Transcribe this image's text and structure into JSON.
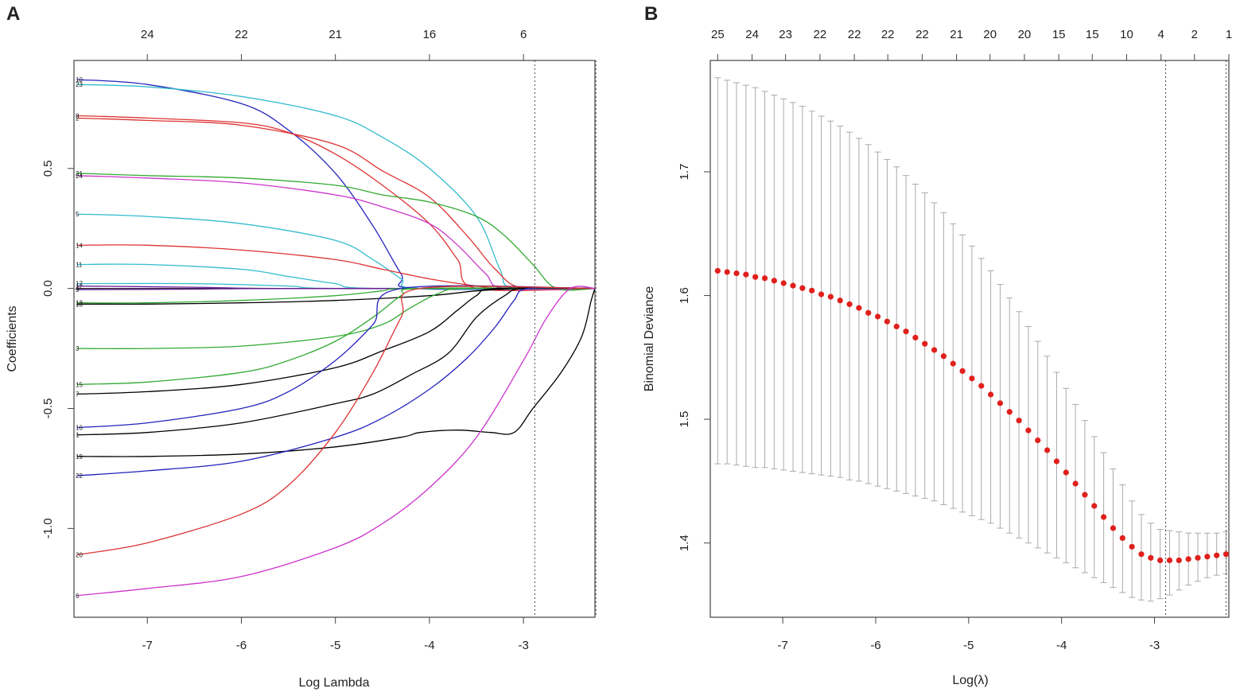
{
  "chart_data": [
    {
      "panel": "A",
      "type": "line",
      "title": "",
      "xlabel": "Log Lambda",
      "ylabel": "Coefficients",
      "xlim": [
        -7.78,
        -2.24
      ],
      "ylim": [
        -1.37,
        0.95
      ],
      "x_ticks": [
        -7,
        -6,
        -5,
        -4,
        -3
      ],
      "y_ticks": [
        0.5,
        0.0,
        -0.5,
        -1.0
      ],
      "y_tick_labels": [
        "0.5",
        "0.0",
        "-0.5",
        "-1.0"
      ],
      "top_axis": {
        "x": [
          -7,
          -6,
          -5,
          -4,
          -3
        ],
        "labels": [
          "24",
          "22",
          "21",
          "16",
          "6"
        ]
      },
      "vlines": [
        -2.88,
        -2.23
      ],
      "color_cycle": [
        "#000000",
        "#dd3333",
        "#33aa33",
        "#2222bb",
        "#33bbcc",
        "#cc33cc"
      ],
      "series": [
        {
          "name": "10",
          "color": "#2222bb",
          "points": [
            [
              -7.75,
              0.87
            ],
            [
              -7,
              0.85
            ],
            [
              -6,
              0.77
            ],
            [
              -5.5,
              0.66
            ],
            [
              -5,
              0.48
            ],
            [
              -4.6,
              0.26
            ],
            [
              -4.3,
              0.06
            ],
            [
              -4.15,
              0
            ]
          ]
        },
        {
          "name": "23",
          "color": "#33bbcc",
          "points": [
            [
              -7.75,
              0.85
            ],
            [
              -7,
              0.84
            ],
            [
              -6,
              0.8
            ],
            [
              -5,
              0.72
            ],
            [
              -4.5,
              0.63
            ],
            [
              -4,
              0.5
            ],
            [
              -3.5,
              0.3
            ],
            [
              -3.25,
              0.08
            ],
            [
              -3.1,
              0
            ]
          ]
        },
        {
          "name": "8",
          "color": "#dd3333",
          "points": [
            [
              -7.75,
              0.72
            ],
            [
              -7,
              0.71
            ],
            [
              -6,
              0.69
            ],
            [
              -5.5,
              0.65
            ],
            [
              -5,
              0.56
            ],
            [
              -4.5,
              0.43
            ],
            [
              -4,
              0.27
            ],
            [
              -3.7,
              0.12
            ],
            [
              -3.5,
              0
            ]
          ]
        },
        {
          "name": "2",
          "color": "#dd3333",
          "points": [
            [
              -7.75,
              0.71
            ],
            [
              -7,
              0.7
            ],
            [
              -6,
              0.68
            ],
            [
              -5,
              0.6
            ],
            [
              -4.5,
              0.49
            ],
            [
              -4,
              0.38
            ],
            [
              -3.6,
              0.22
            ],
            [
              -3.3,
              0.08
            ],
            [
              -3.0,
              0
            ]
          ]
        },
        {
          "name": "21",
          "color": "#33aa33",
          "points": [
            [
              -7.75,
              0.48
            ],
            [
              -7,
              0.47
            ],
            [
              -6,
              0.46
            ],
            [
              -5,
              0.43
            ],
            [
              -4.5,
              0.39
            ],
            [
              -4.0,
              0.36
            ],
            [
              -3.5,
              0.3
            ],
            [
              -3.2,
              0.22
            ],
            [
              -2.9,
              0.1
            ],
            [
              -2.65,
              0
            ]
          ]
        },
        {
          "name": "24",
          "color": "#cc33cc",
          "points": [
            [
              -7.75,
              0.47
            ],
            [
              -7,
              0.46
            ],
            [
              -6,
              0.44
            ],
            [
              -5,
              0.39
            ],
            [
              -4.5,
              0.34
            ],
            [
              -4,
              0.27
            ],
            [
              -3.7,
              0.18
            ],
            [
              -3.4,
              0.06
            ],
            [
              -3.2,
              0
            ]
          ]
        },
        {
          "name": "5",
          "color": "#33bbcc",
          "points": [
            [
              -7.75,
              0.31
            ],
            [
              -7,
              0.3
            ],
            [
              -6,
              0.27
            ],
            [
              -5,
              0.2
            ],
            [
              -4.6,
              0.12
            ],
            [
              -4.3,
              0.04
            ],
            [
              -4.1,
              0
            ]
          ]
        },
        {
          "name": "14",
          "color": "#dd3333",
          "points": [
            [
              -7.75,
              0.18
            ],
            [
              -7,
              0.18
            ],
            [
              -6,
              0.16
            ],
            [
              -5,
              0.12
            ],
            [
              -4.5,
              0.08
            ],
            [
              -4,
              0.04
            ],
            [
              -3.5,
              0.01
            ],
            [
              -3.2,
              0
            ]
          ]
        },
        {
          "name": "11",
          "color": "#33bbcc",
          "points": [
            [
              -7.75,
              0.1
            ],
            [
              -7,
              0.1
            ],
            [
              -6,
              0.08
            ],
            [
              -5.5,
              0.05
            ],
            [
              -5,
              0.02
            ],
            [
              -4.6,
              0
            ]
          ]
        },
        {
          "name": "17",
          "color": "#33bbcc",
          "points": [
            [
              -7.75,
              0.02
            ],
            [
              -6.5,
              0.02
            ],
            [
              -5.5,
              0.01
            ],
            [
              -5,
              0
            ]
          ]
        },
        {
          "name": "12",
          "color": "#6a1b9a",
          "points": [
            [
              -7.75,
              0.01
            ],
            [
              -6.5,
              0.005
            ],
            [
              -5.5,
              0
            ]
          ]
        },
        {
          "name": "4",
          "color": "#333333",
          "points": [
            [
              -7.75,
              0.0
            ],
            [
              -6.5,
              0.0
            ],
            [
              -5.5,
              0
            ]
          ]
        },
        {
          "name": "9",
          "color": "#6a1b9a",
          "points": [
            [
              -7.75,
              -0.005
            ],
            [
              -6.5,
              -0.003
            ],
            [
              -5.5,
              0
            ]
          ]
        },
        {
          "name": "13",
          "color": "#33aa33",
          "points": [
            [
              -7.75,
              -0.06
            ],
            [
              -7,
              -0.06
            ],
            [
              -6,
              -0.05
            ],
            [
              -5,
              -0.03
            ],
            [
              -4.5,
              -0.01
            ],
            [
              -4.2,
              0
            ]
          ]
        },
        {
          "name": "18",
          "color": "#000000",
          "points": [
            [
              -7.75,
              -0.065
            ],
            [
              -7,
              -0.065
            ],
            [
              -6,
              -0.06
            ],
            [
              -5,
              -0.05
            ],
            [
              -4,
              -0.03
            ],
            [
              -3.5,
              -0.01
            ],
            [
              -3,
              0
            ]
          ]
        },
        {
          "name": "3",
          "color": "#33aa33",
          "points": [
            [
              -7.75,
              -0.25
            ],
            [
              -7,
              -0.25
            ],
            [
              -6,
              -0.24
            ],
            [
              -5,
              -0.2
            ],
            [
              -4.5,
              -0.15
            ],
            [
              -4.2,
              -0.08
            ],
            [
              -3.9,
              -0.02
            ],
            [
              -3.6,
              0
            ]
          ]
        },
        {
          "name": "15",
          "color": "#33aa33",
          "points": [
            [
              -7.75,
              -0.4
            ],
            [
              -7,
              -0.39
            ],
            [
              -6,
              -0.35
            ],
            [
              -5.5,
              -0.3
            ],
            [
              -5,
              -0.22
            ],
            [
              -4.6,
              -0.12
            ],
            [
              -4.3,
              -0.03
            ],
            [
              -4.1,
              0
            ]
          ]
        },
        {
          "name": "7",
          "color": "#000000",
          "points": [
            [
              -7.75,
              -0.44
            ],
            [
              -7,
              -0.43
            ],
            [
              -6,
              -0.4
            ],
            [
              -5,
              -0.33
            ],
            [
              -4.5,
              -0.26
            ],
            [
              -4,
              -0.18
            ],
            [
              -3.7,
              -0.09
            ],
            [
              -3.5,
              -0.03
            ],
            [
              -3.3,
              0
            ]
          ]
        },
        {
          "name": "16",
          "color": "#2222bb",
          "points": [
            [
              -7.75,
              -0.58
            ],
            [
              -7,
              -0.56
            ],
            [
              -6,
              -0.5
            ],
            [
              -5.5,
              -0.43
            ],
            [
              -5,
              -0.3
            ],
            [
              -4.6,
              -0.15
            ],
            [
              -4.3,
              0
            ]
          ]
        },
        {
          "name": "1",
          "color": "#000000",
          "points": [
            [
              -7.75,
              -0.61
            ],
            [
              -7,
              -0.6
            ],
            [
              -6,
              -0.56
            ],
            [
              -5,
              -0.48
            ],
            [
              -4.6,
              -0.44
            ],
            [
              -4.2,
              -0.36
            ],
            [
              -3.8,
              -0.27
            ],
            [
              -3.5,
              -0.12
            ],
            [
              -3.2,
              -0.03
            ],
            [
              -3.0,
              0
            ]
          ]
        },
        {
          "name": "19",
          "color": "#000000",
          "points": [
            [
              -7.75,
              -0.7
            ],
            [
              -7,
              -0.7
            ],
            [
              -6,
              -0.69
            ],
            [
              -5,
              -0.66
            ],
            [
              -4.3,
              -0.62
            ],
            [
              -4.1,
              -0.6
            ],
            [
              -3.7,
              -0.59
            ],
            [
              -3.35,
              -0.6
            ],
            [
              -3.1,
              -0.6
            ],
            [
              -2.9,
              -0.5
            ],
            [
              -2.6,
              -0.35
            ],
            [
              -2.38,
              -0.2
            ],
            [
              -2.28,
              -0.05
            ],
            [
              -2.24,
              0
            ]
          ]
        },
        {
          "name": "22",
          "color": "#2222bb",
          "points": [
            [
              -7.75,
              -0.78
            ],
            [
              -7,
              -0.76
            ],
            [
              -6,
              -0.72
            ],
            [
              -5,
              -0.62
            ],
            [
              -4.5,
              -0.54
            ],
            [
              -4,
              -0.42
            ],
            [
              -3.6,
              -0.29
            ],
            [
              -3.3,
              -0.16
            ],
            [
              -3.1,
              -0.05
            ],
            [
              -2.95,
              0
            ]
          ]
        },
        {
          "name": "20",
          "color": "#dd3333",
          "points": [
            [
              -7.75,
              -1.11
            ],
            [
              -7,
              -1.06
            ],
            [
              -6,
              -0.94
            ],
            [
              -5.5,
              -0.82
            ],
            [
              -5,
              -0.6
            ],
            [
              -4.6,
              -0.35
            ],
            [
              -4.3,
              -0.12
            ],
            [
              -4.1,
              0
            ]
          ]
        },
        {
          "name": "6",
          "color": "#cc33cc",
          "points": [
            [
              -7.75,
              -1.28
            ],
            [
              -7,
              -1.25
            ],
            [
              -6,
              -1.2
            ],
            [
              -5,
              -1.08
            ],
            [
              -4.5,
              -0.98
            ],
            [
              -4,
              -0.83
            ],
            [
              -3.5,
              -0.62
            ],
            [
              -3,
              -0.3
            ],
            [
              -2.75,
              -0.12
            ],
            [
              -2.5,
              0
            ]
          ]
        }
      ]
    },
    {
      "panel": "B",
      "type": "scatter",
      "title": "",
      "xlabel": "Log(λ)",
      "ylabel": "Binomial Deviance",
      "xlim": [
        -7.78,
        -2.2
      ],
      "ylim": [
        1.34,
        1.79
      ],
      "x_ticks": [
        -7,
        -6,
        -5,
        -4,
        -3
      ],
      "y_ticks": [
        1.4,
        1.5,
        1.6,
        1.7
      ],
      "y_tick_labels": [
        "1.4",
        "1.5",
        "1.6",
        "1.7"
      ],
      "top_axis": {
        "x": [
          -7.7,
          -7.33,
          -6.97,
          -6.6,
          -6.23,
          -5.87,
          -5.5,
          -5.13,
          -4.77,
          -4.4,
          -4.03,
          -3.67,
          -3.3,
          -2.93,
          -2.57,
          -2.2
        ],
        "labels": [
          "25",
          "24",
          "23",
          "22",
          "22",
          "22",
          "22",
          "21",
          "20",
          "20",
          "15",
          "15",
          "10",
          "4",
          "2",
          "1"
        ]
      },
      "vlines": [
        -2.88,
        -2.23
      ],
      "lambda_start": -7.7,
      "lambda_end": -2.23,
      "deviance": [
        1.62,
        1.619,
        1.618,
        1.617,
        1.615,
        1.614,
        1.612,
        1.61,
        1.608,
        1.606,
        1.604,
        1.601,
        1.599,
        1.596,
        1.593,
        1.59,
        1.586,
        1.583,
        1.579,
        1.575,
        1.571,
        1.566,
        1.561,
        1.556,
        1.551,
        1.545,
        1.539,
        1.533,
        1.527,
        1.52,
        1.513,
        1.506,
        1.499,
        1.491,
        1.483,
        1.475,
        1.466,
        1.457,
        1.448,
        1.439,
        1.43,
        1.421,
        1.412,
        1.404,
        1.397,
        1.391,
        1.388,
        1.386,
        1.386,
        1.386,
        1.387,
        1.388,
        1.389,
        1.39,
        1.391
      ],
      "upper": [
        1.776,
        1.774,
        1.772,
        1.77,
        1.768,
        1.765,
        1.762,
        1.759,
        1.756,
        1.753,
        1.749,
        1.745,
        1.741,
        1.737,
        1.732,
        1.727,
        1.722,
        1.716,
        1.71,
        1.704,
        1.697,
        1.69,
        1.683,
        1.675,
        1.667,
        1.658,
        1.649,
        1.64,
        1.63,
        1.62,
        1.609,
        1.598,
        1.587,
        1.575,
        1.563,
        1.551,
        1.538,
        1.525,
        1.512,
        1.499,
        1.486,
        1.473,
        1.46,
        1.447,
        1.434,
        1.423,
        1.416,
        1.411,
        1.41,
        1.409,
        1.408,
        1.408,
        1.408,
        1.408,
        1.409
      ],
      "lower": [
        1.464,
        1.464,
        1.463,
        1.462,
        1.461,
        1.461,
        1.46,
        1.459,
        1.458,
        1.457,
        1.456,
        1.455,
        1.454,
        1.453,
        1.451,
        1.45,
        1.448,
        1.446,
        1.444,
        1.442,
        1.44,
        1.438,
        1.436,
        1.434,
        1.431,
        1.428,
        1.425,
        1.422,
        1.419,
        1.416,
        1.412,
        1.408,
        1.404,
        1.4,
        1.396,
        1.392,
        1.388,
        1.384,
        1.38,
        1.376,
        1.372,
        1.368,
        1.364,
        1.36,
        1.356,
        1.354,
        1.353,
        1.355,
        1.358,
        1.362,
        1.366,
        1.369,
        1.372,
        1.374,
        1.375
      ]
    }
  ]
}
